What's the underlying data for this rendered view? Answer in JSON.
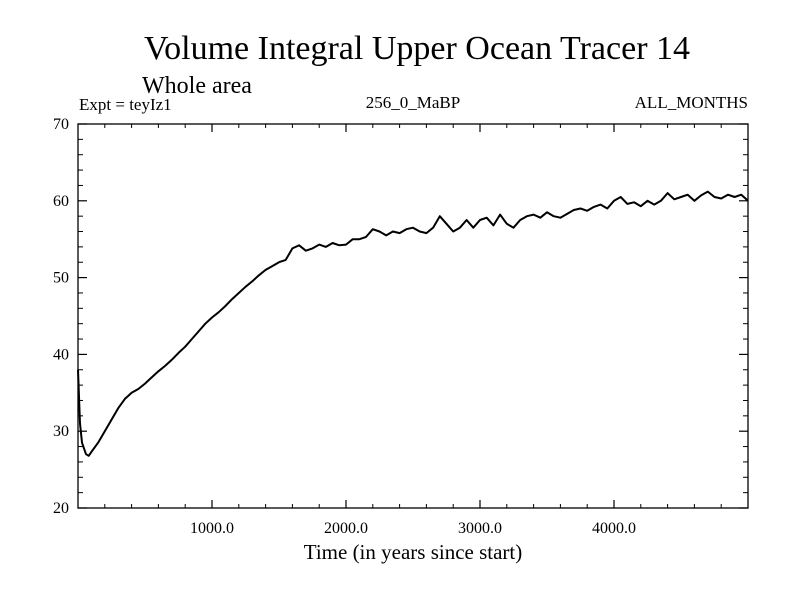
{
  "chart_data": {
    "type": "line",
    "title": "Volume Integral Upper Ocean Tracer 14",
    "subtitle": "Whole area",
    "expt_label": "Expt = teyIz1",
    "period_label": "256_0_MaBP",
    "months_label": "ALL_MONTHS",
    "xlabel": "Time (in years since start)",
    "ylabel": "",
    "xlim": [
      0,
      5000
    ],
    "ylim": [
      20,
      70
    ],
    "x_ticks": [
      1000,
      2000,
      3000,
      4000
    ],
    "x_tick_labels": [
      "1000.0",
      "2000.0",
      "3000.0",
      "4000.0"
    ],
    "y_ticks": [
      20,
      30,
      40,
      50,
      60,
      70
    ],
    "y_tick_labels": [
      "20",
      "30",
      "40",
      "50",
      "60",
      "70"
    ],
    "series": [
      {
        "name": "Tracer 14",
        "x": [
          0,
          15,
          30,
          50,
          60,
          80,
          100,
          150,
          200,
          250,
          300,
          350,
          400,
          450,
          500,
          550,
          600,
          650,
          700,
          750,
          800,
          850,
          900,
          950,
          1000,
          1050,
          1100,
          1150,
          1200,
          1250,
          1300,
          1350,
          1400,
          1450,
          1500,
          1550,
          1600,
          1650,
          1700,
          1750,
          1800,
          1850,
          1900,
          1950,
          2000,
          2050,
          2100,
          2150,
          2200,
          2250,
          2300,
          2350,
          2400,
          2450,
          2500,
          2550,
          2600,
          2650,
          2700,
          2750,
          2800,
          2850,
          2900,
          2950,
          3000,
          3050,
          3100,
          3150,
          3200,
          3250,
          3300,
          3350,
          3400,
          3450,
          3500,
          3550,
          3600,
          3650,
          3700,
          3750,
          3800,
          3850,
          3900,
          3950,
          4000,
          4050,
          4100,
          4150,
          4200,
          4250,
          4300,
          4350,
          4400,
          4450,
          4500,
          4550,
          4600,
          4650,
          4700,
          4750,
          4800,
          4850,
          4900,
          4950,
          5000
        ],
        "y": [
          38.0,
          31.0,
          28.5,
          27.5,
          27.0,
          26.8,
          27.3,
          28.5,
          30.0,
          31.5,
          33.0,
          34.2,
          35.0,
          35.5,
          36.2,
          37.0,
          37.8,
          38.5,
          39.3,
          40.2,
          41.0,
          42.0,
          43.0,
          44.0,
          44.8,
          45.5,
          46.3,
          47.2,
          48.0,
          48.8,
          49.5,
          50.3,
          51.0,
          51.5,
          52.0,
          52.3,
          53.8,
          54.2,
          53.5,
          53.8,
          54.3,
          54.0,
          54.5,
          54.2,
          54.3,
          55.0,
          55.0,
          55.3,
          56.3,
          56.0,
          55.5,
          56.0,
          55.8,
          56.3,
          56.5,
          56.0,
          55.8,
          56.5,
          58.0,
          57.0,
          56.0,
          56.5,
          57.5,
          56.5,
          57.5,
          57.8,
          56.8,
          58.2,
          57.0,
          56.5,
          57.5,
          58.0,
          58.2,
          57.8,
          58.5,
          58.0,
          57.8,
          58.3,
          58.8,
          59.0,
          58.7,
          59.2,
          59.5,
          59.0,
          60.0,
          60.5,
          59.6,
          59.8,
          59.3,
          60.0,
          59.5,
          60.0,
          61.0,
          60.2,
          60.5,
          60.8,
          60.0,
          60.7,
          61.2,
          60.5,
          60.3,
          60.8,
          60.5,
          60.8,
          60.0
        ]
      }
    ]
  }
}
